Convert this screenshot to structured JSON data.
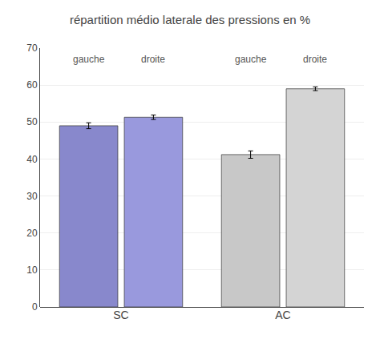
{
  "chart_data": {
    "type": "bar",
    "title": "répartition médio laterale des pressions en %",
    "categories": [
      "SC",
      "AC"
    ],
    "series": [
      {
        "name": "gauche",
        "colors": [
          "#8888cc",
          "#c8c8c8"
        ],
        "values": [
          49.0,
          41.2
        ],
        "errors": [
          0.8,
          1.0
        ]
      },
      {
        "name": "droite",
        "colors": [
          "#9999dd",
          "#d4d4d4"
        ],
        "values": [
          51.3,
          59.0
        ],
        "errors": [
          0.6,
          0.5
        ]
      }
    ],
    "ylim": [
      0,
      70
    ],
    "yticks": [
      0,
      10,
      20,
      30,
      40,
      50,
      60,
      70
    ],
    "grid": true
  }
}
